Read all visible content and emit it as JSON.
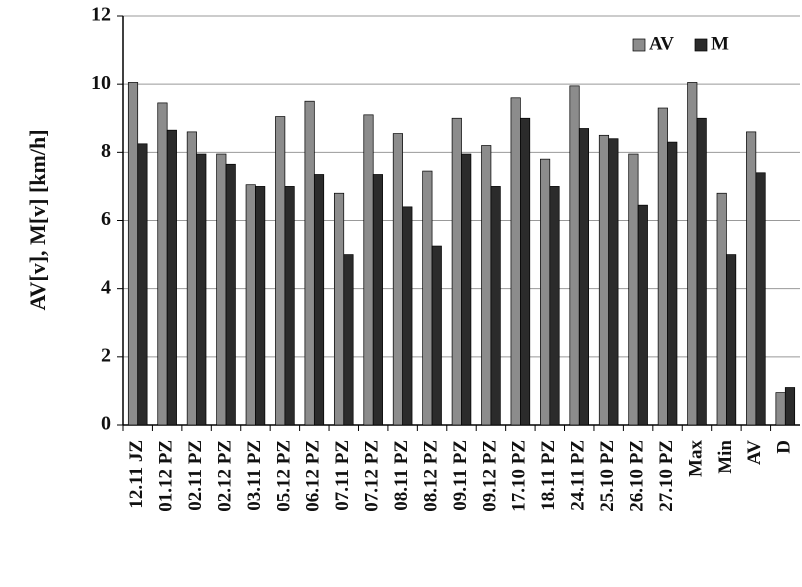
{
  "chart_data": {
    "type": "bar",
    "y_label": "AV[v], M[v] [km/h]",
    "categories": [
      "12.11 JZ",
      "01.12 PZ",
      "02.11 PZ",
      "02.12 PZ",
      "03.11 PZ",
      "05.12 PZ",
      "06.12 PZ",
      "07.11 PZ",
      "07.12 PZ",
      "08.11 PZ",
      "08.12 PZ",
      "09.11 PZ",
      "09.12 PZ",
      "17.10 PZ",
      "18.11 PZ",
      "24.11 PZ",
      "25.10 PZ",
      "26.10 PZ",
      "27.10 PZ",
      "Max",
      "Min",
      "AV",
      "D"
    ],
    "series": [
      {
        "name": "AV",
        "color": "#8c8c8c",
        "values": [
          10.05,
          9.45,
          8.6,
          7.95,
          7.05,
          9.05,
          9.5,
          6.8,
          9.1,
          8.55,
          7.45,
          9.0,
          8.2,
          9.6,
          7.8,
          9.95,
          8.5,
          7.95,
          9.3,
          10.05,
          6.8,
          8.6,
          0.95
        ]
      },
      {
        "name": "M",
        "color": "#2b2b2b",
        "values": [
          8.25,
          8.65,
          7.95,
          7.65,
          7.0,
          7.0,
          7.35,
          5.0,
          7.35,
          6.4,
          5.25,
          7.95,
          7.0,
          9.0,
          7.0,
          8.7,
          8.4,
          6.45,
          8.3,
          9.0,
          5.0,
          7.4,
          1.1
        ]
      }
    ],
    "ylim": [
      0,
      12
    ],
    "yticks": [
      0,
      2,
      4,
      6,
      8,
      10,
      12
    ],
    "grid": true,
    "legend": "top-right"
  }
}
